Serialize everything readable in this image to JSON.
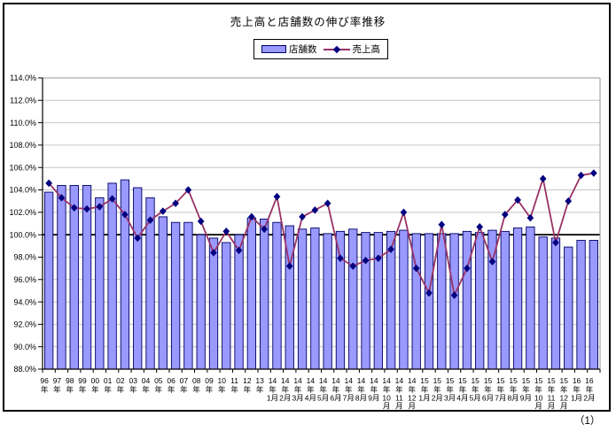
{
  "page": {
    "page_number": "（1）"
  },
  "chart": {
    "title": "売上高と店舗数の伸び率推移",
    "legend": {
      "bar_label": "店舗数",
      "line_label": "売上高"
    }
  },
  "chart_data": {
    "type": "bar+line",
    "title": "売上高と店舗数の伸び率推移",
    "xlabel": "",
    "ylabel": "",
    "ylim": [
      88,
      114
    ],
    "ytick_step": 2,
    "ytick_format": "0.0%",
    "grid": true,
    "legend_position": "top",
    "baseline": 100,
    "colors": {
      "bar_fill": "#9999FF",
      "bar_border": "#000066",
      "line": "#993366",
      "marker": "#000080",
      "gridline": "#c6c6c6",
      "axis": "#000000",
      "plot_border": "#969696"
    },
    "categories": [
      "96年",
      "97年",
      "98年",
      "99年",
      "00年",
      "01年",
      "02年",
      "03年",
      "04年",
      "05年",
      "06年",
      "07年",
      "08年",
      "09年",
      "10年",
      "11年",
      "12年",
      "13年",
      "14年1月",
      "14年2月",
      "14年3月",
      "14年4月",
      "14年5月",
      "14年6月",
      "14年7月",
      "14年8月",
      "14年9月",
      "14年10月",
      "14年11月",
      "14年12月",
      "15年1月",
      "15年2月",
      "15年3月",
      "15年4月",
      "15年5月",
      "15年6月",
      "15年7月",
      "15年8月",
      "15年9月",
      "15年10月",
      "15年11月",
      "15年12月",
      "16年1月",
      "16年2月"
    ],
    "series": [
      {
        "name": "店舗数",
        "type": "bar",
        "values": [
          103.8,
          104.4,
          104.4,
          104.4,
          103.3,
          104.6,
          104.9,
          104.2,
          103.3,
          101.6,
          101.1,
          101.1,
          100.0,
          99.7,
          99.3,
          100.0,
          101.5,
          101.4,
          101.1,
          100.8,
          100.5,
          100.6,
          100.1,
          100.3,
          100.5,
          100.2,
          100.2,
          100.3,
          100.4,
          100.1,
          100.1,
          100.1,
          100.1,
          100.3,
          100.2,
          100.4,
          100.3,
          100.6,
          100.7,
          99.8,
          99.7,
          98.9,
          99.5,
          99.5
        ]
      },
      {
        "name": "売上高",
        "type": "line",
        "values": [
          104.6,
          103.3,
          102.4,
          102.3,
          102.5,
          103.2,
          101.8,
          99.7,
          101.3,
          102.1,
          102.8,
          104.0,
          101.2,
          98.4,
          100.3,
          98.6,
          101.6,
          100.5,
          103.4,
          97.2,
          101.6,
          102.2,
          102.8,
          97.9,
          97.2,
          97.7,
          97.9,
          98.7,
          102.0,
          97.0,
          94.8,
          100.9,
          94.6,
          97.0,
          100.7,
          97.6,
          101.8,
          103.1,
          101.5,
          105.0,
          99.3,
          103.0,
          105.3,
          105.5
        ]
      }
    ]
  }
}
